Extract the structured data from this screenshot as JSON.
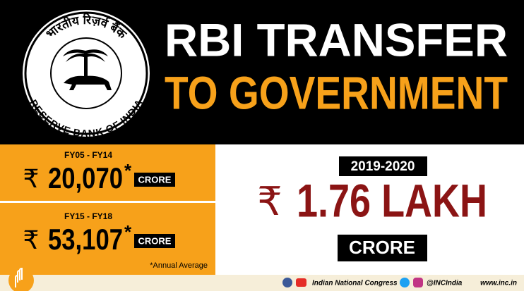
{
  "header": {
    "logo": {
      "top_text": "भारतीय रिज़र्व बैंक",
      "bottom_text": "RESERVE BANK OF INDIA"
    },
    "title_line1": "RBI TRANSFER",
    "title_line2": "TO GOVERNMENT"
  },
  "panels": [
    {
      "period": "FY05 - FY14",
      "currency": "₹",
      "amount": "20,070",
      "marker": "*",
      "unit": "CRORE"
    },
    {
      "period": "FY15 - FY18",
      "currency": "₹",
      "amount": "53,107",
      "marker": "*",
      "unit": "CRORE"
    }
  ],
  "note": "*Annual Average",
  "highlight": {
    "period": "2019-2020",
    "currency": "₹",
    "amount": "1.76 LAKH",
    "unit": "CRORE"
  },
  "footer": {
    "organization": "Indian National Congress",
    "handle": "@INCIndia",
    "website": "www.inc.in"
  }
}
